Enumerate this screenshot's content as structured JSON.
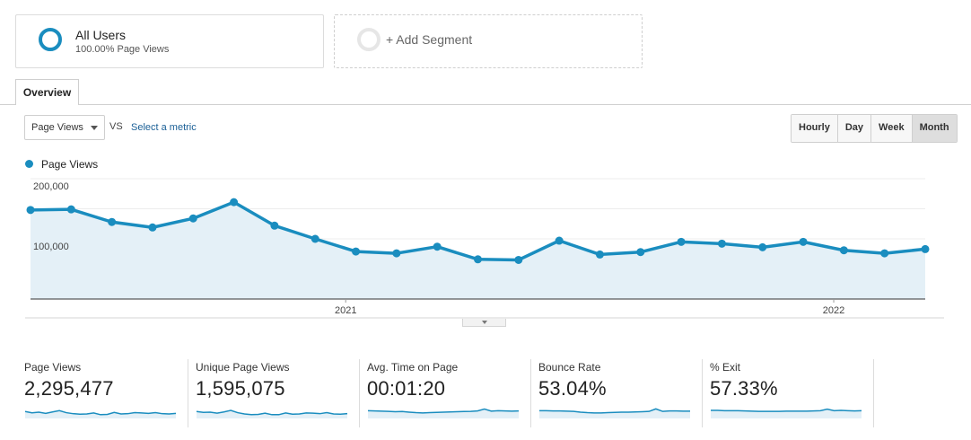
{
  "segments": {
    "active": {
      "title": "All Users",
      "subtitle": "100.00% Page Views",
      "ring_color": "#1a8dbf"
    },
    "add_label": "+ Add Segment"
  },
  "tabs": [
    {
      "label": "Overview"
    }
  ],
  "controls": {
    "metric_select": "Page Views",
    "vs_label": "VS",
    "select_metric_link": "Select a metric",
    "periods": [
      "Hourly",
      "Day",
      "Week",
      "Month"
    ],
    "active_period": "Month"
  },
  "legend": {
    "label": "Page Views",
    "color": "#1a8dbf"
  },
  "chart_data": {
    "type": "area",
    "series": [
      {
        "name": "Page Views",
        "values": [
          148000,
          149000,
          128000,
          119000,
          134000,
          161000,
          122000,
          100000,
          79000,
          76000,
          87000,
          66000,
          65000,
          97000,
          74000,
          78000,
          95000,
          92000,
          86000,
          95000,
          81000,
          76000,
          83000
        ]
      }
    ],
    "x_tick_labels": [
      {
        "label": "2021",
        "index": 8
      },
      {
        "label": "2022",
        "index": 20
      }
    ],
    "y_tick_labels": [
      "200,000",
      "100,000"
    ],
    "ylim": [
      0,
      200000
    ],
    "grid": true,
    "line_color": "#1a8dbf",
    "fill_color": "#e4f0f7"
  },
  "stats": [
    {
      "label": "Page Views",
      "value": "2,295,477",
      "trend": [
        0.55,
        0.45,
        0.5,
        0.4,
        0.52,
        0.62,
        0.46,
        0.38,
        0.34,
        0.36,
        0.44,
        0.3,
        0.32,
        0.48,
        0.36,
        0.38,
        0.46,
        0.44,
        0.4,
        0.46,
        0.38,
        0.36,
        0.4
      ]
    },
    {
      "label": "Unique Page Views",
      "value": "1,595,075",
      "trend": [
        0.55,
        0.48,
        0.5,
        0.42,
        0.52,
        0.64,
        0.46,
        0.36,
        0.3,
        0.32,
        0.42,
        0.3,
        0.3,
        0.44,
        0.34,
        0.36,
        0.44,
        0.42,
        0.38,
        0.46,
        0.36,
        0.34,
        0.38
      ]
    },
    {
      "label": "Avg. Time on Page",
      "value": "00:01:20",
      "trend": [
        0.62,
        0.6,
        0.58,
        0.56,
        0.54,
        0.55,
        0.5,
        0.46,
        0.44,
        0.46,
        0.48,
        0.5,
        0.52,
        0.54,
        0.55,
        0.56,
        0.6,
        0.75,
        0.58,
        0.62,
        0.6,
        0.58,
        0.6
      ]
    },
    {
      "label": "Bounce Rate",
      "value": "53.04%",
      "trend": [
        0.62,
        0.62,
        0.6,
        0.6,
        0.58,
        0.56,
        0.5,
        0.46,
        0.44,
        0.44,
        0.46,
        0.48,
        0.5,
        0.5,
        0.52,
        0.54,
        0.56,
        0.76,
        0.56,
        0.6,
        0.6,
        0.58,
        0.58
      ]
    },
    {
      "label": "% Exit",
      "value": "57.33%",
      "trend": [
        0.64,
        0.64,
        0.62,
        0.62,
        0.62,
        0.6,
        0.58,
        0.56,
        0.56,
        0.56,
        0.56,
        0.58,
        0.58,
        0.58,
        0.58,
        0.6,
        0.62,
        0.74,
        0.62,
        0.64,
        0.62,
        0.6,
        0.62
      ]
    }
  ]
}
